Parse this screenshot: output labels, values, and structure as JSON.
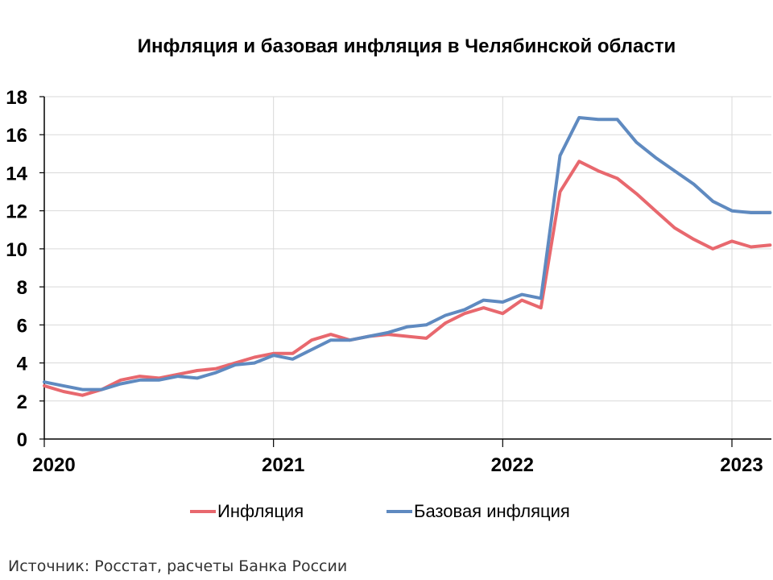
{
  "chart_data": {
    "type": "line",
    "title": "Инфляция и базовая инфляция в Челябинской области",
    "xlabel": "",
    "ylabel": "",
    "ylim": [
      0,
      18
    ],
    "yticks": [
      "0",
      "2",
      "4",
      "6",
      "8",
      "10",
      "12",
      "14",
      "16",
      "18"
    ],
    "xtick_labels": [
      "2020",
      "2021",
      "2022",
      "2023"
    ],
    "x": [
      "2020-01",
      "2020-02",
      "2020-03",
      "2020-04",
      "2020-05",
      "2020-06",
      "2020-07",
      "2020-08",
      "2020-09",
      "2020-10",
      "2020-11",
      "2020-12",
      "2021-01",
      "2021-02",
      "2021-03",
      "2021-04",
      "2021-05",
      "2021-06",
      "2021-07",
      "2021-08",
      "2021-09",
      "2021-10",
      "2021-11",
      "2021-12",
      "2022-01",
      "2022-02",
      "2022-03",
      "2022-04",
      "2022-05",
      "2022-06",
      "2022-07",
      "2022-08",
      "2022-09",
      "2022-10",
      "2022-11",
      "2022-12",
      "2023-01",
      "2023-02",
      "2023-03"
    ],
    "grid": true,
    "legend_position": "bottom",
    "series": [
      {
        "name": "Инфляция",
        "color": "#e8686e",
        "values": [
          2.8,
          2.5,
          2.3,
          2.6,
          3.1,
          3.3,
          3.2,
          3.4,
          3.6,
          3.7,
          4.0,
          4.3,
          4.5,
          4.5,
          5.2,
          5.5,
          5.2,
          5.4,
          5.5,
          5.4,
          5.3,
          6.1,
          6.6,
          6.9,
          6.6,
          7.3,
          6.9,
          13.0,
          14.6,
          14.1,
          13.7,
          12.9,
          12.0,
          11.1,
          10.5,
          10.0,
          10.4,
          10.1,
          10.2
        ]
      },
      {
        "name": "Базовая инфляция",
        "color": "#5f8ac0",
        "values": [
          3.0,
          2.8,
          2.6,
          2.6,
          2.9,
          3.1,
          3.1,
          3.3,
          3.2,
          3.5,
          3.9,
          4.0,
          4.4,
          4.2,
          4.7,
          5.2,
          5.2,
          5.4,
          5.6,
          5.9,
          6.0,
          6.5,
          6.8,
          7.3,
          7.2,
          7.6,
          7.4,
          14.9,
          16.9,
          16.8,
          16.8,
          15.6,
          14.8,
          14.1,
          13.4,
          12.5,
          12.0,
          11.9,
          11.9
        ]
      }
    ]
  },
  "source": "Источник: Росстат, расчеты Банка России"
}
